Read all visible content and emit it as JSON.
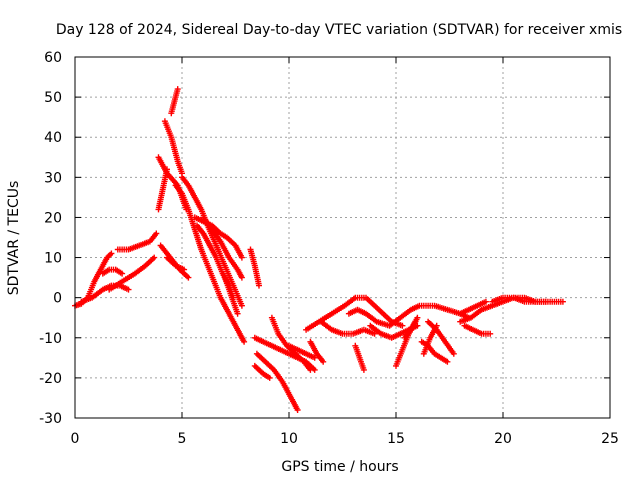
{
  "chart_data": {
    "type": "scatter",
    "title": "Day 128 of 2024, Sidereal Day-to-day VTEC variation (SDTVAR) for receiver xmis",
    "xlabel": "GPS time / hours",
    "ylabel": "SDTVAR / TECUs",
    "xlim": [
      0,
      25
    ],
    "ylim": [
      -30,
      60
    ],
    "xticks": [
      0,
      5,
      10,
      15,
      20,
      25
    ],
    "yticks": [
      -30,
      -20,
      -10,
      0,
      10,
      20,
      30,
      40,
      50,
      60
    ],
    "xtick_labels": [
      "0",
      "5",
      "10",
      "15",
      "20",
      "25"
    ],
    "ytick_labels": [
      "-30",
      "-20",
      "-10",
      "0",
      "10",
      "20",
      "30",
      "40",
      "50",
      "60"
    ],
    "grid": true,
    "marker": "+",
    "color": "#ff0000",
    "series": [
      {
        "name": "track-1",
        "x": [
          0,
          0.3,
          0.6,
          0.9,
          1.2,
          1.5,
          1.7
        ],
        "y": [
          -2,
          -1.5,
          0,
          4,
          7,
          10,
          11
        ]
      },
      {
        "name": "track-2",
        "x": [
          0.3,
          0.8,
          1.3,
          1.7,
          2.1,
          2.5
        ],
        "y": [
          -1,
          0,
          2,
          3,
          3,
          2
        ]
      },
      {
        "name": "track-3",
        "x": [
          1.3,
          1.6,
          1.9,
          2.2
        ],
        "y": [
          6,
          7,
          7,
          6
        ]
      },
      {
        "name": "track-4",
        "x": [
          2.0,
          2.5,
          3.0,
          3.5,
          3.8
        ],
        "y": [
          12,
          12,
          13,
          14,
          16
        ]
      },
      {
        "name": "track-5",
        "x": [
          1.6,
          2.2,
          2.8,
          3.3,
          3.7
        ],
        "y": [
          2,
          4,
          6,
          8,
          10
        ]
      },
      {
        "name": "track-6",
        "x": [
          3.9,
          4.3,
          4.8,
          5.2
        ],
        "y": [
          35,
          31,
          28,
          22
        ]
      },
      {
        "name": "track-7",
        "x": [
          4.2,
          4.5,
          4.8,
          5.0
        ],
        "y": [
          44,
          40,
          34,
          31
        ]
      },
      {
        "name": "track-8",
        "x": [
          4.5,
          4.7,
          4.8
        ],
        "y": [
          46,
          50,
          52
        ]
      },
      {
        "name": "track-9",
        "x": [
          3.9,
          4.1,
          4.3
        ],
        "y": [
          22,
          27,
          32
        ]
      },
      {
        "name": "track-10",
        "x": [
          4.7,
          5.0,
          5.3,
          5.6,
          5.9,
          6.2,
          6.5,
          6.8,
          7.1,
          7.4,
          7.7,
          7.9
        ],
        "y": [
          28,
          26,
          22,
          17,
          12,
          8,
          4,
          0,
          -3,
          -6,
          -9,
          -11
        ]
      },
      {
        "name": "track-11",
        "x": [
          5.0,
          5.3,
          5.6,
          5.9,
          6.2,
          6.6,
          7.0,
          7.4,
          7.8
        ],
        "y": [
          30,
          28,
          25,
          22,
          18,
          13,
          8,
          3,
          -2
        ]
      },
      {
        "name": "track-12",
        "x": [
          5.6,
          6.0,
          6.4,
          6.8,
          7.1,
          7.5,
          7.8
        ],
        "y": [
          20,
          19,
          18,
          16,
          15,
          13,
          10
        ]
      },
      {
        "name": "track-13",
        "x": [
          5.7,
          6.0,
          6.3,
          6.6,
          6.9,
          7.2,
          7.4
        ],
        "y": [
          18,
          16,
          13,
          10,
          6,
          3,
          0
        ]
      },
      {
        "name": "track-14",
        "x": [
          4.0,
          4.3,
          4.6,
          4.9,
          5.3
        ],
        "y": [
          13,
          11,
          9,
          7,
          5
        ]
      },
      {
        "name": "track-15",
        "x": [
          4.3,
          4.7,
          5.1
        ],
        "y": [
          10,
          8,
          7
        ]
      },
      {
        "name": "track-16",
        "x": [
          6.0,
          6.4,
          6.8,
          7.2,
          7.6,
          7.8
        ],
        "y": [
          20,
          17,
          14,
          10,
          7,
          5
        ]
      },
      {
        "name": "track-17",
        "x": [
          7.0,
          7.2,
          7.4,
          7.6
        ],
        "y": [
          5,
          2,
          -1,
          -4
        ]
      },
      {
        "name": "track-18",
        "x": [
          8.2,
          8.4,
          8.6
        ],
        "y": [
          12,
          8,
          3
        ]
      },
      {
        "name": "track-19",
        "x": [
          8.4,
          8.8,
          9.2,
          9.6,
          10.0,
          10.4,
          10.8,
          11.2
        ],
        "y": [
          -10,
          -11,
          -12,
          -13,
          -14,
          -15,
          -16,
          -18
        ]
      },
      {
        "name": "track-20",
        "x": [
          8.5,
          8.9,
          9.3,
          9.7,
          10.1,
          10.4
        ],
        "y": [
          -14,
          -16,
          -18,
          -21,
          -25,
          -28
        ]
      },
      {
        "name": "track-21",
        "x": [
          8.4,
          8.8,
          9.1
        ],
        "y": [
          -17,
          -19,
          -20
        ]
      },
      {
        "name": "track-22",
        "x": [
          9.2,
          9.5,
          9.9,
          10.3,
          10.7,
          11.0
        ],
        "y": [
          -5,
          -9,
          -12,
          -14,
          -16,
          -18
        ]
      },
      {
        "name": "track-23",
        "x": [
          10.0,
          10.4,
          10.8,
          11.2
        ],
        "y": [
          -12,
          -13,
          -14,
          -15
        ]
      },
      {
        "name": "track-24",
        "x": [
          11.0,
          11.3,
          11.6
        ],
        "y": [
          -11,
          -14,
          -16
        ]
      },
      {
        "name": "track-25",
        "x": [
          10.8,
          11.4,
          12.0,
          12.6,
          13.1,
          13.6,
          14.2,
          14.8,
          15.3
        ],
        "y": [
          -8,
          -6,
          -4,
          -2,
          0,
          0,
          -3,
          -6,
          -7
        ]
      },
      {
        "name": "track-26",
        "x": [
          11.5,
          12.0,
          12.5,
          13.0,
          13.5,
          14.0
        ],
        "y": [
          -6,
          -8,
          -9,
          -9,
          -8,
          -9
        ]
      },
      {
        "name": "track-27",
        "x": [
          13.1,
          13.3,
          13.5
        ],
        "y": [
          -12,
          -15,
          -18
        ]
      },
      {
        "name": "track-28",
        "x": [
          12.8,
          13.2,
          13.6,
          14.1,
          14.7,
          15.2,
          15.7,
          16.1
        ],
        "y": [
          -4,
          -3,
          -4,
          -6,
          -7,
          -5,
          -3,
          -2
        ]
      },
      {
        "name": "track-29",
        "x": [
          13.8,
          14.3,
          14.8,
          15.2,
          15.6,
          16.0
        ],
        "y": [
          -7,
          -9,
          -10,
          -9,
          -8,
          -7
        ]
      },
      {
        "name": "track-30",
        "x": [
          15.0,
          15.3,
          15.6,
          15.9
        ],
        "y": [
          -17,
          -13,
          -9,
          -6
        ]
      },
      {
        "name": "track-31",
        "x": [
          15.4,
          15.7,
          16.0
        ],
        "y": [
          -10,
          -8,
          -5
        ]
      },
      {
        "name": "track-32",
        "x": [
          16.2,
          16.5,
          16.8,
          17.1,
          17.4
        ],
        "y": [
          -11,
          -12,
          -14,
          -15,
          -16
        ]
      },
      {
        "name": "track-33",
        "x": [
          16.3,
          16.6,
          16.9
        ],
        "y": [
          -14,
          -10,
          -7
        ]
      },
      {
        "name": "track-34",
        "x": [
          16.5,
          16.9,
          17.3,
          17.7
        ],
        "y": [
          -6,
          -8,
          -11,
          -14
        ]
      },
      {
        "name": "track-35",
        "x": [
          16.2,
          16.8,
          17.4,
          18.0,
          18.4
        ],
        "y": [
          -2,
          -2,
          -3,
          -4,
          -5
        ]
      },
      {
        "name": "track-36",
        "x": [
          18.0,
          18.4,
          18.8,
          19.2
        ],
        "y": [
          -4,
          -3,
          -2,
          -1
        ]
      },
      {
        "name": "track-37",
        "x": [
          18.2,
          18.6,
          19.0,
          19.4
        ],
        "y": [
          -7,
          -8,
          -9,
          -9
        ]
      },
      {
        "name": "track-38",
        "x": [
          18.0,
          18.5,
          19.0,
          19.5,
          20.0,
          20.5,
          21.0,
          21.5,
          22.0,
          22.4,
          22.8
        ],
        "y": [
          -6,
          -5,
          -3,
          -2,
          -1,
          0,
          0,
          -1,
          -1,
          -1,
          -1
        ]
      },
      {
        "name": "track-39",
        "x": [
          19.5,
          20.0,
          20.5,
          21.0,
          21.5,
          22.0
        ],
        "y": [
          -1,
          0,
          0,
          -1,
          -1,
          -1
        ]
      }
    ]
  }
}
